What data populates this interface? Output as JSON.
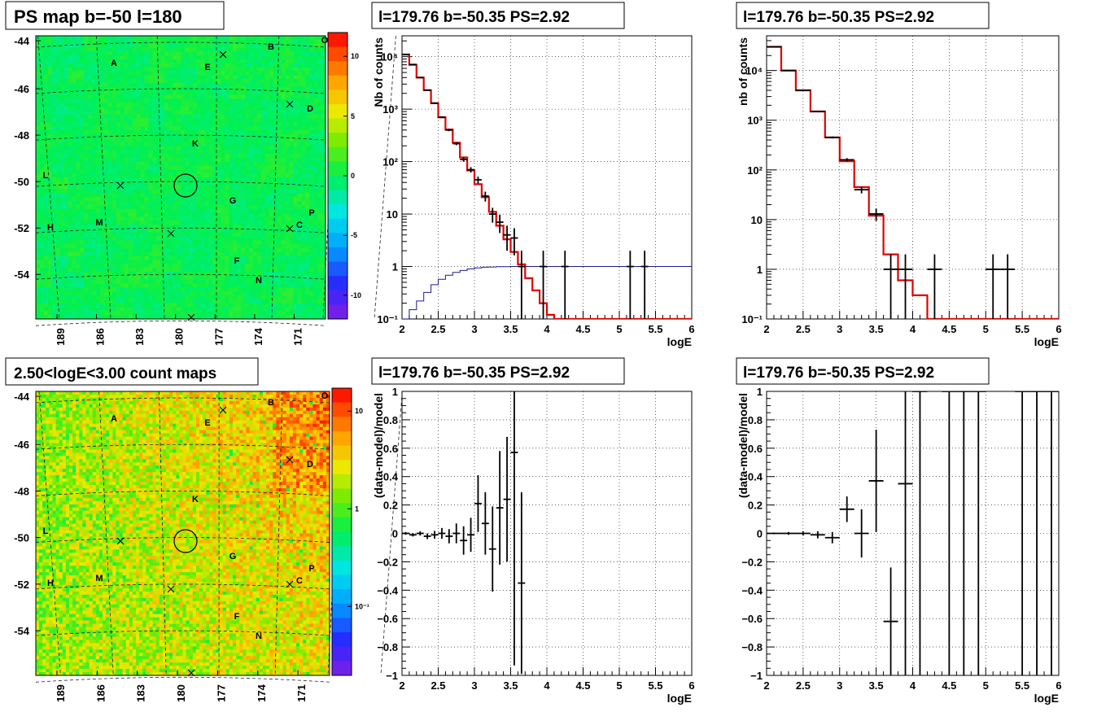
{
  "chart_data": [
    {
      "panel": "top-left",
      "type": "heatmap",
      "title": "PS map b=-50 l=180",
      "y_ticks": [
        "-44",
        "-46",
        "-48",
        "-50",
        "-52",
        "-54"
      ],
      "x_ticks": [
        "189",
        "186",
        "183",
        "180",
        "177",
        "174",
        "171"
      ],
      "colorbar_ticks": [
        "10",
        "5",
        "0",
        "-5",
        "-10"
      ],
      "z_range": [
        -12,
        12
      ],
      "base_value": 0,
      "markers": [
        {
          "label": "A",
          "lon": 184.0,
          "lat": -44.6
        },
        {
          "label": "B",
          "lon": 173.5,
          "lat": -44.3
        },
        {
          "label": "E",
          "lon": 177.5,
          "lat": -44.8
        },
        {
          "label": "D",
          "lon": 172.0,
          "lat": -46.9
        },
        {
          "label": "K",
          "lon": 178.5,
          "lat": -48.5
        },
        {
          "label": "L",
          "lon": 190.2,
          "lat": -49.8
        },
        {
          "label": "G",
          "lon": 176.5,
          "lat": -50.8
        },
        {
          "label": "P",
          "lon": 172.0,
          "lat": -51.3
        },
        {
          "label": "H",
          "lon": 189.5,
          "lat": -52.2
        },
        {
          "label": "M",
          "lon": 185.5,
          "lat": -52.0
        },
        {
          "label": "C",
          "lon": 172.6,
          "lat": -52.1
        },
        {
          "label": "F",
          "lon": 176.0,
          "lat": -53.7
        },
        {
          "label": "N",
          "lon": 174.5,
          "lat": -54.4
        },
        {
          "label": "O",
          "lon": 170.0,
          "lat": -44.0
        }
      ]
    },
    {
      "panel": "top-middle",
      "type": "line",
      "title": "l=179.76 b=-50.35 PS=2.92",
      "xlabel": "logE",
      "ylabel": "Nb of counts",
      "ylog": true,
      "xlim": [
        2,
        6
      ],
      "ylim": [
        0.1,
        25000
      ],
      "x_ticks": [
        "2",
        "2.5",
        "3",
        "3.5",
        "4",
        "4.5",
        "5",
        "5.5",
        "6"
      ],
      "y_ticks": [
        "10⁻¹",
        "1",
        "10",
        "10²",
        "10³",
        "10⁴"
      ],
      "bin_edges": [
        2.0,
        2.1,
        2.2,
        2.3,
        2.4,
        2.5,
        2.6,
        2.7,
        2.8,
        2.9,
        3.0,
        3.1,
        3.2,
        3.3,
        3.4,
        3.5,
        3.6,
        3.7,
        3.8,
        3.9,
        4.0,
        4.1,
        6.0
      ],
      "model": [
        11000,
        7000,
        4000,
        2300,
        1300,
        700,
        410,
        230,
        120,
        68,
        37,
        21,
        11,
        6,
        3.3,
        1.9,
        1.1,
        0.6,
        0.35,
        0.2,
        0.12,
        0.1
      ],
      "series": [
        {
          "name": "data",
          "x": [
            2.05,
            2.15,
            2.25,
            2.35,
            2.45,
            2.55,
            2.65,
            2.75,
            2.85,
            2.95,
            3.05,
            3.15,
            3.25,
            3.35,
            3.45,
            3.55,
            3.65,
            3.95,
            4.25,
            5.15,
            5.35
          ],
          "y": [
            11000,
            7100,
            4000,
            2300,
            1300,
            700,
            400,
            220,
            110,
            70,
            45,
            22,
            10,
            7,
            4,
            3.5,
            1,
            1,
            1,
            1,
            1
          ]
        },
        {
          "name": "background",
          "x": [
            2.0,
            2.1,
            2.2,
            2.3,
            2.4,
            2.5,
            2.6,
            2.7,
            2.8,
            2.9,
            3.0,
            3.1,
            3.2,
            3.3,
            3.4,
            3.5,
            3.6,
            3.7,
            3.8,
            3.9,
            4.0,
            6.0
          ],
          "y": [
            0.1,
            0.15,
            0.22,
            0.32,
            0.45,
            0.57,
            0.68,
            0.77,
            0.84,
            0.9,
            0.94,
            0.97,
            0.98,
            0.99,
            0.995,
            1,
            1,
            1,
            1,
            1,
            1,
            1
          ]
        }
      ]
    },
    {
      "panel": "top-right",
      "type": "line",
      "title": "l=179.76 b=-50.35 PS=2.92",
      "xlabel": "logE",
      "ylabel": "nb of counts",
      "ylog": true,
      "xlim": [
        2,
        6
      ],
      "ylim": [
        0.1,
        50000
      ],
      "x_ticks": [
        "2",
        "2.5",
        "3",
        "3.5",
        "4",
        "4.5",
        "5",
        "5.5",
        "6"
      ],
      "y_ticks": [
        "10⁻¹",
        "1",
        "10",
        "10²",
        "10³",
        "10⁴"
      ],
      "bin_edges": [
        2.0,
        2.2,
        2.4,
        2.6,
        2.8,
        3.0,
        3.2,
        3.4,
        3.6,
        3.8,
        4.0,
        4.2,
        6.0
      ],
      "model": [
        30000,
        10000,
        4000,
        1500,
        450,
        150,
        45,
        12,
        2,
        0.6,
        0.3,
        0.1
      ],
      "series": [
        {
          "name": "data",
          "x": [
            2.1,
            2.3,
            2.5,
            2.7,
            2.9,
            3.1,
            3.3,
            3.5,
            3.7,
            3.9,
            4.3,
            5.1,
            5.3
          ],
          "y": [
            30000,
            10000,
            4000,
            1500,
            450,
            160,
            40,
            13,
            1,
            1,
            1,
            1,
            1
          ]
        }
      ]
    },
    {
      "panel": "bottom-left",
      "type": "heatmap",
      "title": "2.50<logE<3.00 count maps",
      "y_ticks": [
        "-44",
        "-46",
        "-48",
        "-50",
        "-52",
        "-54"
      ],
      "x_ticks": [
        "189",
        "186",
        "183",
        "180",
        "177",
        "174",
        "171"
      ],
      "colorbar_ticks": [
        "10",
        "1",
        "10⁻¹"
      ],
      "z_log": true,
      "z_range": [
        0.01,
        20
      ]
    },
    {
      "panel": "bottom-middle",
      "type": "scatter",
      "title": "l=179.76 b=-50.35 PS=2.92",
      "xlabel": "logE",
      "ylabel": "(data-model)/model",
      "xlim": [
        2,
        6
      ],
      "ylim": [
        -1,
        1
      ],
      "x_ticks": [
        "2",
        "2.5",
        "3",
        "3.5",
        "4",
        "4.5",
        "5",
        "5.5",
        "6"
      ],
      "y_ticks": [
        "−1",
        "−0.8",
        "−0.6",
        "−0.4",
        "−0.2",
        "0",
        "0.2",
        "0.4",
        "0.6",
        "0.8",
        "1"
      ],
      "points": [
        {
          "x": 2.05,
          "y": 0.0,
          "err": 0.01
        },
        {
          "x": 2.15,
          "y": -0.01,
          "err": 0.012
        },
        {
          "x": 2.25,
          "y": 0.0,
          "err": 0.015
        },
        {
          "x": 2.35,
          "y": -0.02,
          "err": 0.02
        },
        {
          "x": 2.45,
          "y": -0.01,
          "err": 0.028
        },
        {
          "x": 2.55,
          "y": 0.0,
          "err": 0.038
        },
        {
          "x": 2.65,
          "y": -0.02,
          "err": 0.05
        },
        {
          "x": 2.75,
          "y": 0.0,
          "err": 0.07
        },
        {
          "x": 2.85,
          "y": -0.05,
          "err": 0.1
        },
        {
          "x": 2.95,
          "y": -0.01,
          "err": 0.12
        },
        {
          "x": 3.05,
          "y": 0.21,
          "err": 0.2
        },
        {
          "x": 3.15,
          "y": 0.07,
          "err": 0.22
        },
        {
          "x": 3.25,
          "y": -0.11,
          "err": 0.3
        },
        {
          "x": 3.35,
          "y": 0.18,
          "err": 0.4
        },
        {
          "x": 3.45,
          "y": 0.24,
          "err": 0.44
        },
        {
          "x": 3.55,
          "y": 0.57,
          "err": 1.5
        },
        {
          "x": 3.65,
          "y": -0.35,
          "err": 0.64
        }
      ]
    },
    {
      "panel": "bottom-right",
      "type": "scatter",
      "title": "l=179.76 b=-50.35 PS=2.92",
      "xlabel": "logE",
      "ylabel": "(data-model)/model",
      "xlim": [
        2,
        6
      ],
      "ylim": [
        -1,
        1
      ],
      "x_ticks": [
        "2",
        "2.5",
        "3",
        "3.5",
        "4",
        "4.5",
        "5",
        "5.5",
        "6"
      ],
      "y_ticks": [
        "−1",
        "−0.8",
        "−0.6",
        "−0.4",
        "−0.2",
        "0",
        "0.2",
        "0.4",
        "0.6",
        "0.8",
        "1"
      ],
      "points": [
        {
          "x": 2.1,
          "y": 0.0,
          "err": 0.006
        },
        {
          "x": 2.3,
          "y": 0.0,
          "err": 0.01
        },
        {
          "x": 2.5,
          "y": 0.0,
          "err": 0.015
        },
        {
          "x": 2.7,
          "y": -0.01,
          "err": 0.025
        },
        {
          "x": 2.9,
          "y": -0.03,
          "err": 0.04
        },
        {
          "x": 3.1,
          "y": 0.17,
          "err": 0.09
        },
        {
          "x": 3.3,
          "y": 0.0,
          "err": 0.17
        },
        {
          "x": 3.5,
          "y": 0.37,
          "err": 0.36
        },
        {
          "x": 3.7,
          "y": -0.62,
          "err": 0.38
        },
        {
          "x": 3.9,
          "y": 0.35,
          "err": 1.5
        },
        {
          "x": 4.1,
          "y": 1.0,
          "err": 2.0
        },
        {
          "x": 4.5,
          "y": 1.0,
          "err": 2.0
        },
        {
          "x": 4.7,
          "y": 1.0,
          "err": 2.0
        },
        {
          "x": 4.9,
          "y": 1.0,
          "err": 2.0
        },
        {
          "x": 5.5,
          "y": 1.0,
          "err": 2.0
        },
        {
          "x": 5.7,
          "y": 1.0,
          "err": 2.0
        },
        {
          "x": 5.9,
          "y": 1.0,
          "err": 2.0
        }
      ]
    }
  ]
}
